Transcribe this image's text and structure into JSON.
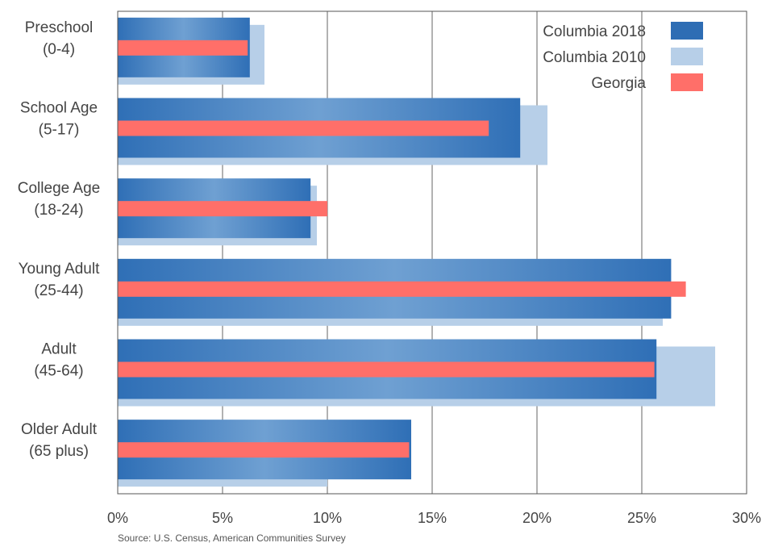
{
  "chart_data": {
    "type": "bar",
    "orientation": "horizontal",
    "categories": [
      [
        "Preschool",
        "(0-4)"
      ],
      [
        "School Age",
        "(5-17)"
      ],
      [
        "College Age",
        "(18-24)"
      ],
      [
        "Young Adult",
        "(25-44)"
      ],
      [
        "Adult",
        "(45-64)"
      ],
      [
        "Older Adult",
        "(65 plus)"
      ]
    ],
    "series": [
      {
        "name": "Columbia 2018",
        "color": "#2e6db4",
        "values": [
          6.3,
          19.2,
          9.2,
          26.4,
          25.7,
          14.0
        ]
      },
      {
        "name": "Columbia 2010",
        "color": "#b7cfe8",
        "values": [
          7.0,
          20.5,
          9.5,
          26.0,
          28.5,
          10.0
        ]
      },
      {
        "name": "Georgia",
        "color": "#ff6f69",
        "values": [
          6.2,
          17.7,
          10.0,
          27.1,
          25.6,
          13.9
        ]
      }
    ],
    "xlim": [
      0,
      30
    ],
    "xticks": [
      0,
      5,
      10,
      15,
      20,
      25,
      30
    ],
    "tick_suffix": "%",
    "grid": true,
    "legend_position": "top-right"
  },
  "source": "Source: U.S. Census, American Communities Survey"
}
